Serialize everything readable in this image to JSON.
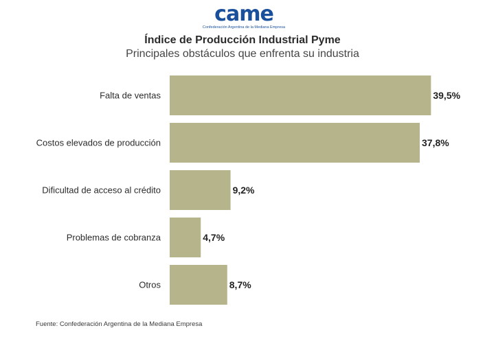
{
  "logo": {
    "wordmark": "came",
    "subtitle": "Confederación Argentina de la Mediana Empresa"
  },
  "header": {
    "title": "Índice de Producción Industrial Pyme",
    "subtitle": "Principales obstáculos que enfrenta su industria"
  },
  "footer": {
    "source": "Fuente: Confederación Argentina de la Mediana Empresa"
  },
  "colors": {
    "bar": "#b5b48b",
    "label": "#2b2b2b",
    "value": "#222222"
  },
  "chart_data": {
    "type": "bar",
    "orientation": "horizontal",
    "title": "Índice de Producción Industrial Pyme",
    "subtitle": "Principales obstáculos que enfrenta su industria",
    "categories": [
      "Falta de ventas",
      "Costos elevados de producción",
      "Dificultad de acceso al crédito",
      "Problemas de cobranza",
      "Otros"
    ],
    "values": [
      39.5,
      37.8,
      9.2,
      4.7,
      8.7
    ],
    "value_labels": [
      "39,5%",
      "37,8%",
      "9,2%",
      "4,7%",
      "8,7%"
    ],
    "xlim": [
      0,
      40.5
    ],
    "grid": false,
    "legend": "none"
  }
}
